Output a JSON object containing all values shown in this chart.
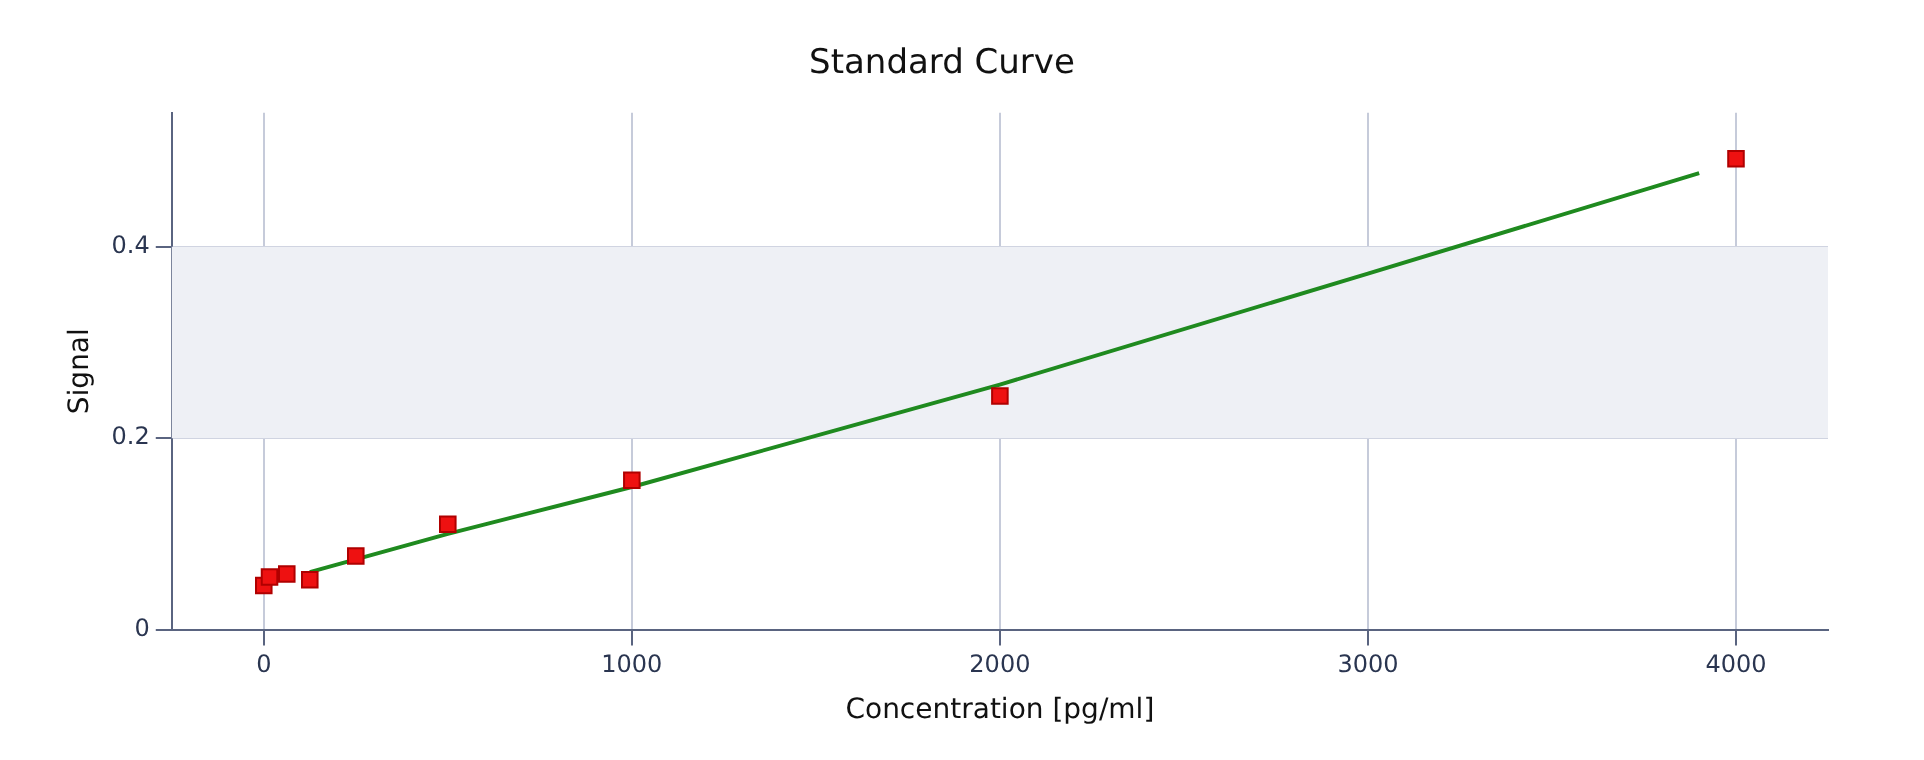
{
  "chart_data": {
    "type": "scatter",
    "title": "Standard Curve",
    "xlabel": "Concentration [pg/ml]",
    "ylabel": "Signal",
    "xlim": [
      -250,
      4250
    ],
    "xticks": [
      0,
      1000,
      2000,
      3000,
      4000
    ],
    "ylim": [
      0,
      0.54
    ],
    "yticks": [
      0,
      0.2,
      0.4
    ],
    "grid": true,
    "legend": false,
    "bands": [
      {
        "axis": "y",
        "from": 0.2,
        "to": 0.4,
        "color": "#eef0f5"
      }
    ],
    "series": [
      {
        "type": "line",
        "color": "#1f8a1f",
        "marker": "none",
        "line_style": "solid",
        "x": [
          125,
          500,
          1000,
          2000,
          3000,
          3900
        ],
        "values": [
          0.06,
          0.1,
          0.149,
          0.256,
          0.372,
          0.477
        ]
      },
      {
        "color": "#ee1111",
        "marker": "square",
        "x": [
          0,
          15.6,
          62.5,
          125,
          250,
          500,
          1000,
          2000,
          4000
        ],
        "values": [
          0.046,
          0.055,
          0.058,
          0.052,
          0.077,
          0.11,
          0.156,
          0.244,
          0.492
        ]
      }
    ]
  }
}
